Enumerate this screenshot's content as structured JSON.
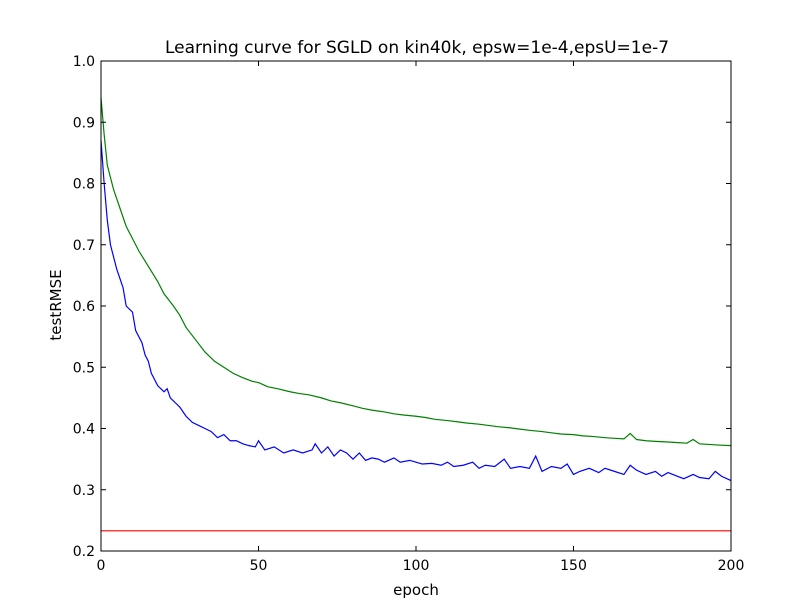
{
  "chart_data": {
    "type": "line",
    "title": "Learning curve for SGLD on kin40k, epsw=1e-4,epsU=1e-7",
    "xlabel": "epoch",
    "ylabel": "testRMSE",
    "xlim": [
      0,
      200
    ],
    "ylim": [
      0.2,
      1.0
    ],
    "xticks": [
      "0",
      "50",
      "100",
      "150",
      "200"
    ],
    "yticks": [
      "0.2",
      "0.3",
      "0.4",
      "0.5",
      "0.6",
      "0.7",
      "0.8",
      "0.9",
      "1.0"
    ],
    "grid": false,
    "legend": "none",
    "series": [
      {
        "color": "#0000ff",
        "points": [
          [
            0,
            0.87
          ],
          [
            1,
            0.8
          ],
          [
            2,
            0.74
          ],
          [
            3,
            0.7
          ],
          [
            5,
            0.66
          ],
          [
            7,
            0.63
          ],
          [
            8,
            0.6
          ],
          [
            10,
            0.59
          ],
          [
            11,
            0.56
          ],
          [
            13,
            0.54
          ],
          [
            14,
            0.52
          ],
          [
            15,
            0.51
          ],
          [
            16,
            0.49
          ],
          [
            17,
            0.48
          ],
          [
            18,
            0.47
          ],
          [
            20,
            0.46
          ],
          [
            21,
            0.465
          ],
          [
            22,
            0.45
          ],
          [
            24,
            0.44
          ],
          [
            25,
            0.435
          ],
          [
            27,
            0.42
          ],
          [
            29,
            0.41
          ],
          [
            31,
            0.405
          ],
          [
            33,
            0.4
          ],
          [
            35,
            0.395
          ],
          [
            37,
            0.385
          ],
          [
            39,
            0.39
          ],
          [
            41,
            0.38
          ],
          [
            43,
            0.38
          ],
          [
            45,
            0.375
          ],
          [
            47,
            0.372
          ],
          [
            49,
            0.37
          ],
          [
            50,
            0.38
          ],
          [
            52,
            0.365
          ],
          [
            55,
            0.37
          ],
          [
            58,
            0.36
          ],
          [
            61,
            0.365
          ],
          [
            64,
            0.36
          ],
          [
            67,
            0.365
          ],
          [
            68,
            0.375
          ],
          [
            70,
            0.36
          ],
          [
            72,
            0.37
          ],
          [
            74,
            0.355
          ],
          [
            76,
            0.365
          ],
          [
            78,
            0.36
          ],
          [
            80,
            0.35
          ],
          [
            82,
            0.36
          ],
          [
            84,
            0.348
          ],
          [
            86,
            0.352
          ],
          [
            88,
            0.35
          ],
          [
            90,
            0.345
          ],
          [
            93,
            0.352
          ],
          [
            95,
            0.345
          ],
          [
            98,
            0.348
          ],
          [
            100,
            0.345
          ],
          [
            102,
            0.342
          ],
          [
            105,
            0.343
          ],
          [
            108,
            0.34
          ],
          [
            110,
            0.345
          ],
          [
            112,
            0.338
          ],
          [
            115,
            0.34
          ],
          [
            118,
            0.345
          ],
          [
            120,
            0.335
          ],
          [
            122,
            0.34
          ],
          [
            125,
            0.338
          ],
          [
            128,
            0.35
          ],
          [
            130,
            0.335
          ],
          [
            133,
            0.338
          ],
          [
            136,
            0.335
          ],
          [
            138,
            0.355
          ],
          [
            140,
            0.33
          ],
          [
            143,
            0.338
          ],
          [
            146,
            0.335
          ],
          [
            148,
            0.342
          ],
          [
            150,
            0.325
          ],
          [
            152,
            0.33
          ],
          [
            155,
            0.335
          ],
          [
            158,
            0.328
          ],
          [
            160,
            0.335
          ],
          [
            163,
            0.33
          ],
          [
            166,
            0.325
          ],
          [
            168,
            0.34
          ],
          [
            170,
            0.332
          ],
          [
            173,
            0.325
          ],
          [
            176,
            0.33
          ],
          [
            178,
            0.322
          ],
          [
            180,
            0.328
          ],
          [
            183,
            0.322
          ],
          [
            185,
            0.318
          ],
          [
            188,
            0.325
          ],
          [
            190,
            0.32
          ],
          [
            193,
            0.318
          ],
          [
            195,
            0.33
          ],
          [
            197,
            0.322
          ],
          [
            200,
            0.315
          ]
        ]
      },
      {
        "color": "#008000",
        "points": [
          [
            0,
            0.94
          ],
          [
            1,
            0.88
          ],
          [
            2,
            0.83
          ],
          [
            4,
            0.79
          ],
          [
            6,
            0.76
          ],
          [
            8,
            0.73
          ],
          [
            10,
            0.71
          ],
          [
            12,
            0.69
          ],
          [
            15,
            0.665
          ],
          [
            18,
            0.64
          ],
          [
            20,
            0.62
          ],
          [
            23,
            0.6
          ],
          [
            25,
            0.585
          ],
          [
            27,
            0.565
          ],
          [
            30,
            0.545
          ],
          [
            33,
            0.525
          ],
          [
            36,
            0.51
          ],
          [
            39,
            0.5
          ],
          [
            42,
            0.49
          ],
          [
            45,
            0.483
          ],
          [
            48,
            0.477
          ],
          [
            50,
            0.475
          ],
          [
            53,
            0.468
          ],
          [
            56,
            0.465
          ],
          [
            60,
            0.46
          ],
          [
            63,
            0.457
          ],
          [
            66,
            0.455
          ],
          [
            70,
            0.45
          ],
          [
            73,
            0.445
          ],
          [
            76,
            0.442
          ],
          [
            80,
            0.437
          ],
          [
            83,
            0.433
          ],
          [
            86,
            0.43
          ],
          [
            90,
            0.427
          ],
          [
            93,
            0.424
          ],
          [
            96,
            0.422
          ],
          [
            100,
            0.42
          ],
          [
            103,
            0.418
          ],
          [
            106,
            0.415
          ],
          [
            110,
            0.413
          ],
          [
            113,
            0.411
          ],
          [
            116,
            0.409
          ],
          [
            120,
            0.407
          ],
          [
            123,
            0.405
          ],
          [
            126,
            0.403
          ],
          [
            130,
            0.401
          ],
          [
            133,
            0.399
          ],
          [
            136,
            0.397
          ],
          [
            140,
            0.395
          ],
          [
            143,
            0.393
          ],
          [
            146,
            0.391
          ],
          [
            150,
            0.39
          ],
          [
            153,
            0.388
          ],
          [
            156,
            0.387
          ],
          [
            160,
            0.385
          ],
          [
            163,
            0.384
          ],
          [
            166,
            0.383
          ],
          [
            168,
            0.392
          ],
          [
            170,
            0.382
          ],
          [
            173,
            0.38
          ],
          [
            176,
            0.379
          ],
          [
            180,
            0.378
          ],
          [
            183,
            0.377
          ],
          [
            186,
            0.376
          ],
          [
            188,
            0.382
          ],
          [
            190,
            0.375
          ],
          [
            193,
            0.374
          ],
          [
            196,
            0.373
          ],
          [
            200,
            0.372
          ]
        ]
      },
      {
        "color": "#ff0000",
        "points": [
          [
            0,
            0.233
          ],
          [
            200,
            0.233
          ]
        ]
      }
    ]
  }
}
